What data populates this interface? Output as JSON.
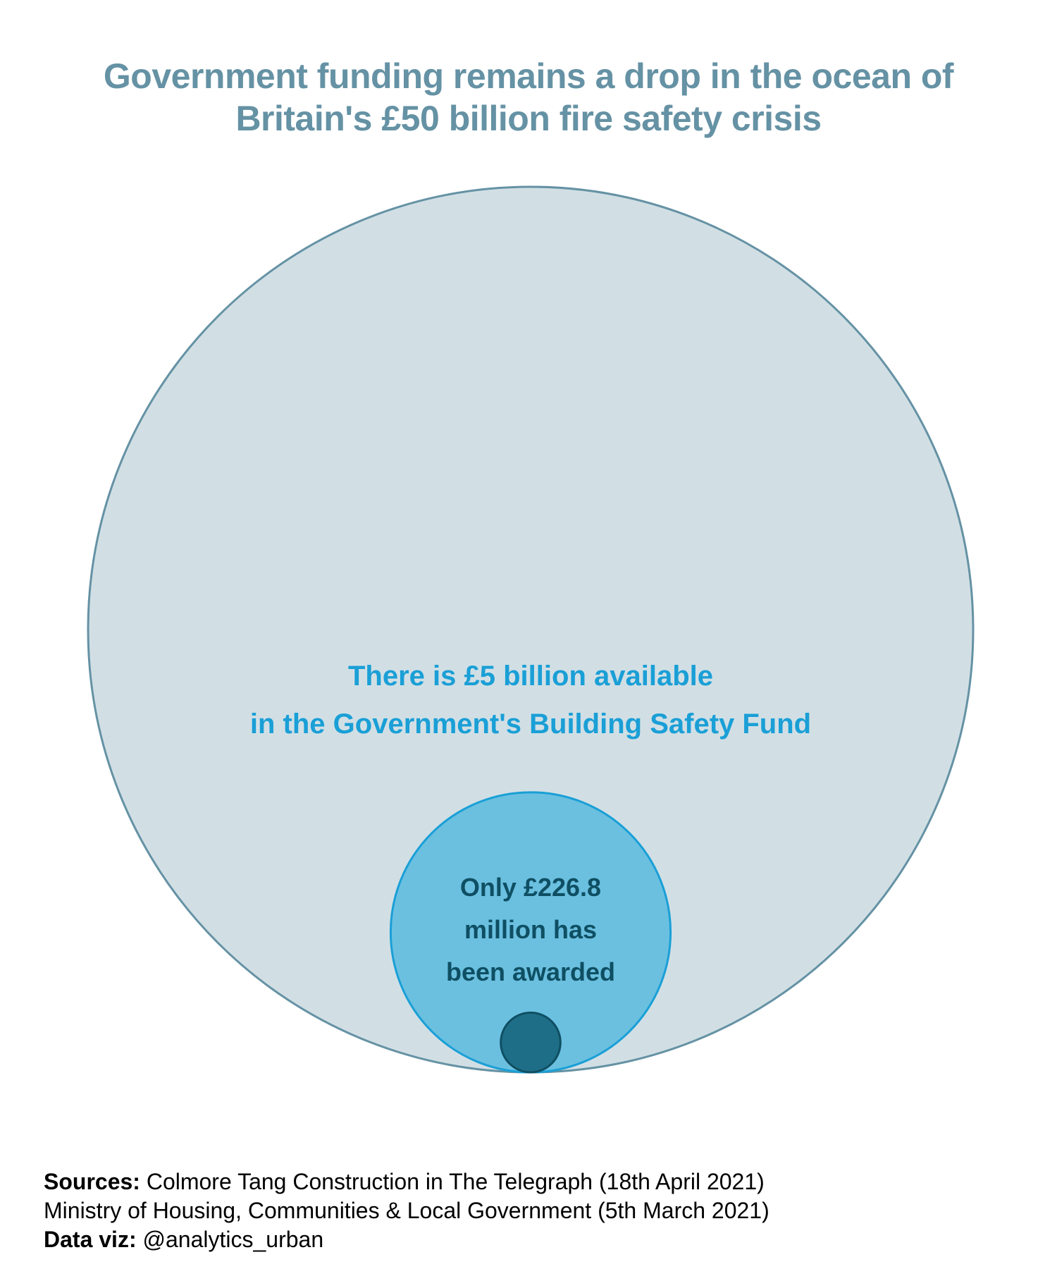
{
  "title": {
    "line1": "Government funding remains a drop in the ocean of",
    "line2": "Britain's £50 billion fire safety crisis"
  },
  "chart_data": {
    "type": "bubble",
    "units": "£ billion",
    "circles": [
      {
        "name": "Fire safety crisis",
        "value": 50,
        "fill": "#d1dfe5",
        "stroke": "#6592a4",
        "labels": []
      },
      {
        "name": "Building Safety Fund",
        "value": 5,
        "fill": "#6bc0e0",
        "stroke": "#1a9fd6",
        "labels": [
          "There is £5 billion available",
          "in the Government's Building Safety Fund"
        ],
        "label_color": "#1a9fd6"
      },
      {
        "name": "Awarded",
        "value": 0.2268,
        "fill": "#1e6e87",
        "stroke": "#0f4f63",
        "labels": [
          "Only £226.8",
          "million has",
          "been awarded"
        ],
        "label_color": "#0f4f63"
      }
    ],
    "arrangement": "nested, bottom-aligned"
  },
  "footer": {
    "sources_label": "Sources:",
    "sources_line1": "Colmore Tang Construction in The Telegraph (18th April 2021)",
    "sources_line2": "Ministry of Housing, Communities & Local Government (5th March 2021)",
    "dataviz_label": "Data viz:",
    "dataviz_value": "@analytics_urban"
  }
}
